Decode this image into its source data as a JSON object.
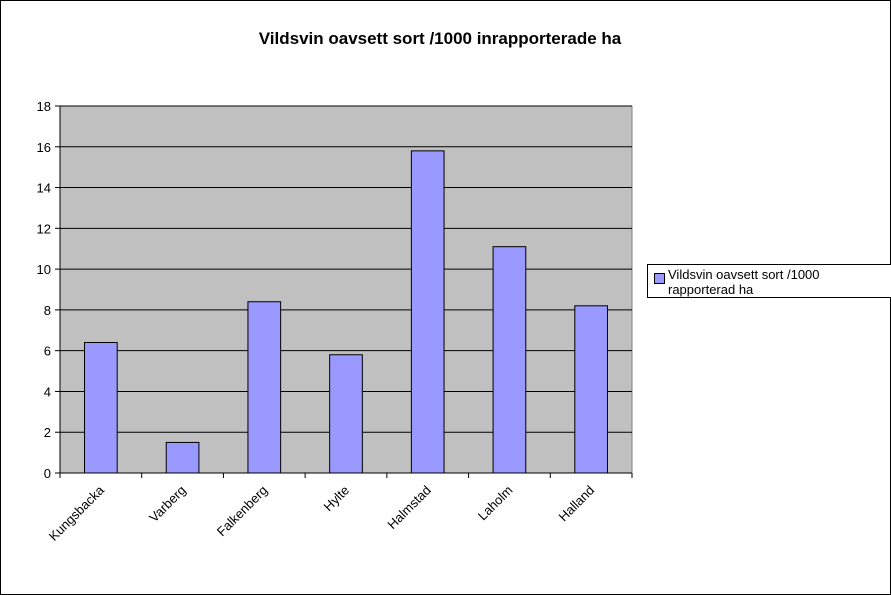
{
  "chart_data": {
    "type": "bar",
    "title": "Vildsvin oavsett sort /1000 inrapporterade ha",
    "categories": [
      "Kungsbacka",
      "Varberg",
      "Falkenberg",
      "Hylte",
      "Halmstad",
      "Laholm",
      "Halland"
    ],
    "series": [
      {
        "name": "Vildsvin oavsett sort /1000 rapporterad ha",
        "color": "#9999ff",
        "values": [
          6.4,
          1.5,
          8.4,
          5.8,
          15.8,
          11.1,
          8.2
        ]
      }
    ],
    "ylim": [
      0,
      18
    ],
    "yticks": [
      0,
      2,
      4,
      6,
      8,
      10,
      12,
      14,
      16,
      18
    ],
    "grid": true,
    "legend": "right"
  }
}
